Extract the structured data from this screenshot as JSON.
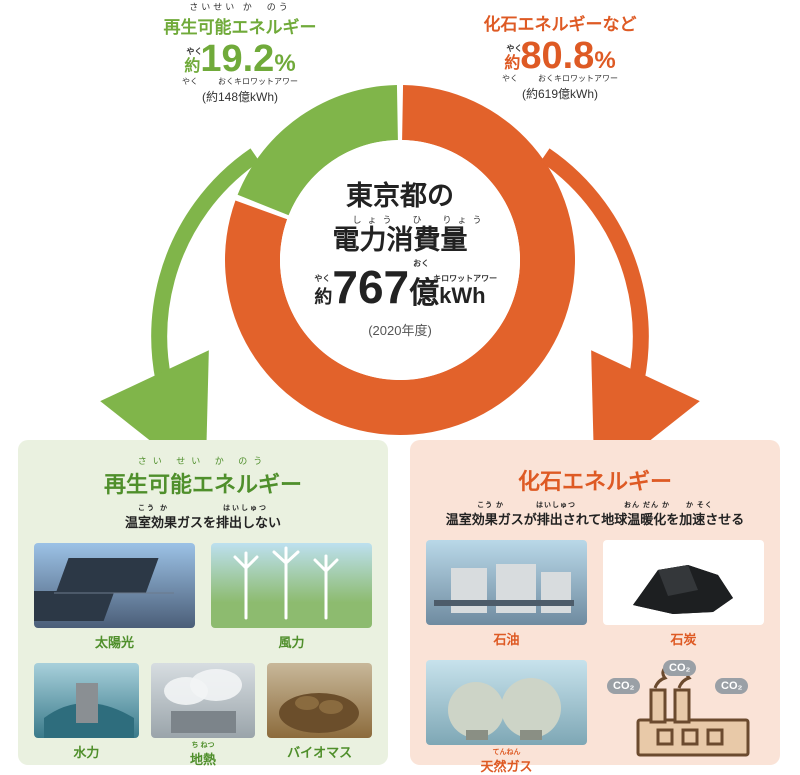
{
  "colors": {
    "renewable": "#80b54a",
    "renewable_dark": "#4f8f2b",
    "fossil": "#e2622b",
    "fossil_dark": "#de5a24",
    "white": "#ffffff",
    "text": "#222222",
    "box_green_bg": "#eaf1e0",
    "box_orange_bg": "#fae3d7"
  },
  "donut": {
    "type": "donut",
    "outer_r": 175,
    "inner_r": 120,
    "gap_deg": 2,
    "slices": [
      {
        "key": "renewable",
        "pct": 19.2,
        "color": "#80b54a"
      },
      {
        "key": "fossil",
        "pct": 80.8,
        "color": "#e2622b"
      }
    ],
    "center": {
      "line1": "東京都の",
      "line2": "電力消費量",
      "line2_ruby": "しょう　ひ　りょう",
      "yaku": "約",
      "yaku_ruby": "やく",
      "value": "767",
      "oku": "億",
      "oku_ruby": "おく",
      "kwh": "kWh",
      "kwh_ruby": "キロワットアワー",
      "year": "(2020年度)"
    }
  },
  "top_left": {
    "ruby": "さいせい か　のう",
    "title": "再生可能エネルギー",
    "yaku": "約",
    "pct": "19.2",
    "pct_sign": "%",
    "sub_ruby_yaku": "やく",
    "sub_ruby_oku": "おくキロワットアワー",
    "sub": "(約148億kWh)"
  },
  "top_right": {
    "title": "化石エネルギーなど",
    "yaku": "約",
    "pct": "80.8",
    "pct_sign": "%",
    "sub_ruby_yaku": "やく",
    "sub_ruby_oku": "おくキロワットアワー",
    "sub": "(約619億kWh)"
  },
  "box_left": {
    "ruby": "さい せい  か   のう",
    "title": "再生可能エネルギー",
    "sub_ruby": "こう か　　　　　　はいしゅつ",
    "sub": "温室効果ガスを排出しない",
    "items_top": [
      {
        "label": "太陽光",
        "pic": "solar"
      },
      {
        "label": "風力",
        "pic": "wind"
      }
    ],
    "items_bottom": [
      {
        "label": "水力",
        "pic": "hydro"
      },
      {
        "label": "地熱",
        "label_ruby": "ち ねつ",
        "pic": "geo"
      },
      {
        "label": "バイオマス",
        "pic": "bio"
      }
    ]
  },
  "box_right": {
    "title": "化石エネルギー",
    "sub_ruby": "こう か　　　　はいしゅつ　　　　　　おん だん か　　か そく",
    "sub": "温室効果ガスが排出されて地球温暖化を加速させる",
    "items": [
      {
        "label": "石油",
        "pic": "oil"
      },
      {
        "label": "石炭",
        "pic": "coal"
      },
      {
        "label": "天然ガス",
        "label_ruby": "てんねん",
        "pic": "gas"
      }
    ],
    "co2_label": "CO₂"
  }
}
